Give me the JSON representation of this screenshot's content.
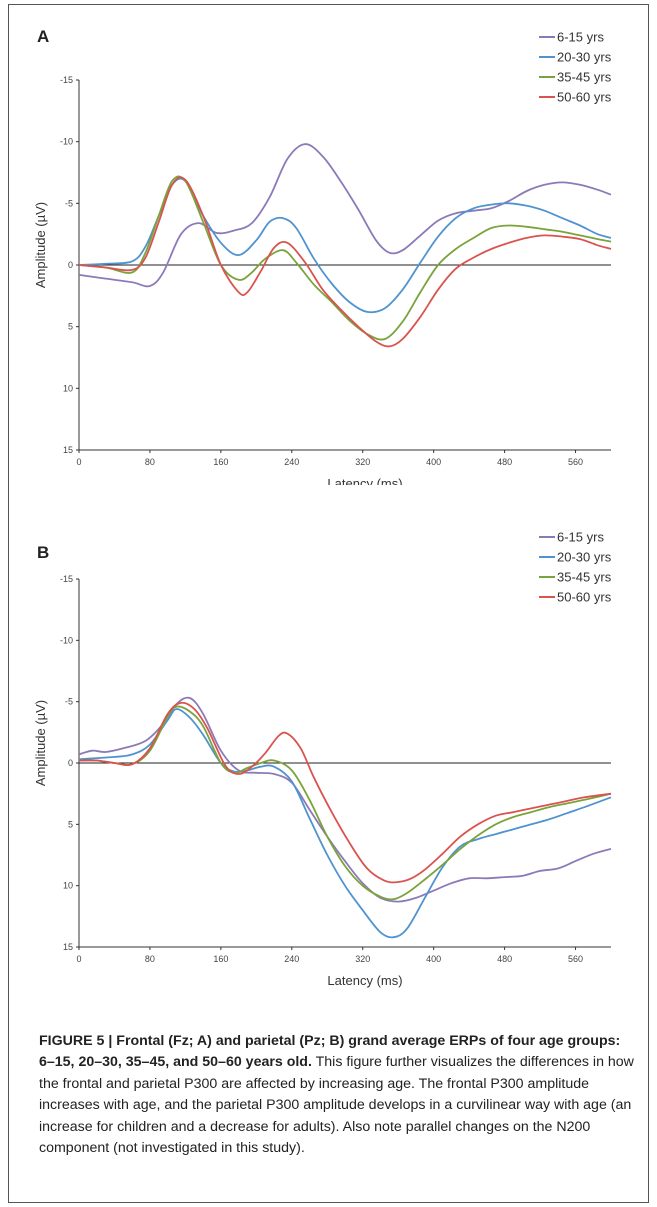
{
  "chart_data": [
    {
      "panel": "A",
      "type": "line",
      "xlabel": "Latency (ms)",
      "ylabel": "Amplitude (µV)",
      "xlim": [
        0,
        600
      ],
      "ylim": [
        -15,
        15
      ],
      "y_inverted": true,
      "xticks": [
        0,
        80,
        160,
        240,
        320,
        400,
        480,
        560
      ],
      "yticks": [
        -15,
        -10,
        -5,
        0,
        5,
        10,
        15
      ],
      "ytick_labels": [
        "-15",
        "-10",
        "-5",
        "0",
        "5",
        "10",
        "15"
      ],
      "grid": false,
      "legend_position": "top-right",
      "series": [
        {
          "name": "6-15 yrs",
          "color": "#8c7ab8",
          "x": [
            0,
            30,
            60,
            80,
            95,
            115,
            135,
            155,
            175,
            195,
            215,
            235,
            255,
            275,
            295,
            315,
            335,
            350,
            365,
            385,
            405,
            425,
            445,
            465,
            485,
            505,
            525,
            545,
            565,
            585,
            600
          ],
          "y": [
            0.8,
            1.1,
            1.4,
            1.7,
            0.6,
            -2.5,
            -3.4,
            -2.6,
            -2.8,
            -3.4,
            -5.5,
            -8.6,
            -9.8,
            -8.8,
            -6.8,
            -4.5,
            -2.0,
            -1.0,
            -1.2,
            -2.4,
            -3.6,
            -4.2,
            -4.4,
            -4.6,
            -5.2,
            -6.0,
            -6.5,
            -6.7,
            -6.5,
            -6.1,
            -5.7
          ]
        },
        {
          "name": "20-30 yrs",
          "color": "#4f93cf",
          "x": [
            0,
            30,
            60,
            75,
            90,
            105,
            120,
            140,
            160,
            180,
            200,
            215,
            230,
            245,
            265,
            285,
            305,
            325,
            345,
            365,
            385,
            405,
            425,
            445,
            465,
            485,
            505,
            525,
            545,
            565,
            585,
            600
          ],
          "y": [
            0.0,
            -0.1,
            -0.3,
            -1.5,
            -4.0,
            -6.5,
            -6.8,
            -4.0,
            -1.8,
            -0.8,
            -2.0,
            -3.5,
            -3.8,
            -3.0,
            -0.5,
            1.5,
            3.0,
            3.8,
            3.5,
            2.0,
            -0.2,
            -2.3,
            -3.8,
            -4.6,
            -4.9,
            -5.0,
            -4.8,
            -4.4,
            -3.8,
            -3.2,
            -2.5,
            -2.2
          ]
        },
        {
          "name": "35-45 yrs",
          "color": "#7aa33b",
          "x": [
            0,
            30,
            60,
            75,
            90,
            105,
            120,
            140,
            160,
            180,
            195,
            210,
            230,
            245,
            265,
            285,
            305,
            325,
            345,
            365,
            385,
            405,
            425,
            445,
            465,
            485,
            505,
            525,
            545,
            565,
            585,
            600
          ],
          "y": [
            0.0,
            0.2,
            0.6,
            -1.0,
            -4.0,
            -6.8,
            -6.8,
            -3.5,
            0.0,
            1.2,
            0.6,
            -0.5,
            -1.2,
            -0.2,
            1.6,
            3.0,
            4.5,
            5.6,
            6.0,
            4.6,
            2.2,
            0.0,
            -1.3,
            -2.2,
            -3.0,
            -3.2,
            -3.1,
            -2.9,
            -2.7,
            -2.4,
            -2.1,
            -1.9
          ]
        },
        {
          "name": "50-60 yrs",
          "color": "#d9534f",
          "x": [
            0,
            30,
            60,
            75,
            90,
            105,
            120,
            140,
            160,
            180,
            190,
            205,
            220,
            235,
            255,
            275,
            295,
            315,
            335,
            350,
            365,
            385,
            405,
            425,
            445,
            465,
            485,
            505,
            525,
            545,
            565,
            585,
            600
          ],
          "y": [
            0.0,
            0.2,
            0.4,
            -0.6,
            -3.5,
            -6.5,
            -6.9,
            -4.0,
            0.0,
            2.2,
            2.2,
            0.5,
            -1.4,
            -1.8,
            -0.2,
            2.0,
            3.6,
            5.0,
            6.2,
            6.6,
            6.0,
            4.2,
            2.0,
            0.3,
            -0.6,
            -1.3,
            -1.8,
            -2.2,
            -2.4,
            -2.3,
            -2.1,
            -1.6,
            -1.3
          ]
        }
      ]
    },
    {
      "panel": "B",
      "type": "line",
      "xlabel": "Latency (ms)",
      "ylabel": "Amplitude (µV)",
      "xlim": [
        0,
        600
      ],
      "ylim": [
        -15,
        15
      ],
      "y_inverted": true,
      "xticks": [
        0,
        80,
        160,
        240,
        320,
        400,
        480,
        560
      ],
      "yticks": [
        -15,
        -10,
        -5,
        0,
        5,
        10,
        15
      ],
      "ytick_labels": [
        "-15",
        "-10",
        "-5",
        "0",
        "5",
        "10",
        "15"
      ],
      "grid": false,
      "legend_position": "top-right",
      "series": [
        {
          "name": "6-15 yrs",
          "color": "#8c7ab8",
          "x": [
            0,
            15,
            30,
            50,
            75,
            95,
            110,
            125,
            140,
            160,
            180,
            200,
            220,
            240,
            260,
            280,
            300,
            320,
            340,
            360,
            380,
            400,
            420,
            440,
            460,
            480,
            500,
            520,
            540,
            560,
            580,
            600
          ],
          "y": [
            -0.7,
            -1.0,
            -0.9,
            -1.2,
            -1.8,
            -3.2,
            -4.8,
            -5.3,
            -4.0,
            -1.0,
            0.6,
            0.8,
            0.9,
            1.6,
            3.8,
            6.0,
            8.0,
            9.8,
            11.0,
            11.3,
            11.0,
            10.4,
            9.8,
            9.4,
            9.4,
            9.3,
            9.2,
            8.8,
            8.6,
            8.0,
            7.4,
            7.0
          ]
        },
        {
          "name": "20-30 yrs",
          "color": "#4f93cf",
          "x": [
            0,
            20,
            40,
            60,
            80,
            100,
            110,
            125,
            140,
            160,
            175,
            190,
            205,
            220,
            240,
            260,
            280,
            300,
            320,
            340,
            355,
            370,
            390,
            410,
            430,
            450,
            470,
            490,
            510,
            530,
            550,
            570,
            600
          ],
          "y": [
            -0.3,
            -0.4,
            -0.5,
            -0.7,
            -1.5,
            -3.5,
            -4.4,
            -3.7,
            -2.3,
            0.0,
            0.7,
            0.6,
            0.3,
            0.3,
            1.5,
            4.5,
            7.5,
            10.0,
            12.0,
            13.8,
            14.2,
            13.5,
            11.0,
            8.5,
            6.8,
            6.2,
            5.8,
            5.4,
            5.0,
            4.6,
            4.1,
            3.6,
            2.8
          ]
        },
        {
          "name": "35-45 yrs",
          "color": "#7aa33b",
          "x": [
            0,
            20,
            40,
            60,
            80,
            100,
            110,
            125,
            140,
            160,
            175,
            190,
            205,
            220,
            240,
            260,
            280,
            300,
            320,
            340,
            355,
            370,
            390,
            410,
            430,
            450,
            470,
            490,
            510,
            530,
            550,
            570,
            600
          ],
          "y": [
            -0.2,
            -0.2,
            0.0,
            0.1,
            -1.0,
            -3.8,
            -4.6,
            -4.2,
            -3.0,
            0.0,
            0.8,
            0.4,
            0.0,
            -0.2,
            0.6,
            3.0,
            6.0,
            8.4,
            10.0,
            10.9,
            11.1,
            10.6,
            9.5,
            8.3,
            7.0,
            5.9,
            5.0,
            4.4,
            4.0,
            3.6,
            3.3,
            3.0,
            2.5
          ]
        },
        {
          "name": "50-60 yrs",
          "color": "#d9534f",
          "x": [
            0,
            20,
            40,
            60,
            80,
            100,
            115,
            130,
            145,
            165,
            180,
            195,
            210,
            225,
            235,
            250,
            265,
            285,
            305,
            325,
            345,
            360,
            375,
            390,
            410,
            430,
            450,
            470,
            490,
            510,
            530,
            550,
            570,
            600
          ],
          "y": [
            -0.2,
            -0.2,
            0.0,
            0.1,
            -1.2,
            -4.0,
            -4.9,
            -4.4,
            -2.8,
            0.2,
            0.9,
            0.3,
            -0.8,
            -2.2,
            -2.4,
            -1.2,
            1.2,
            4.0,
            6.5,
            8.6,
            9.6,
            9.7,
            9.4,
            8.7,
            7.4,
            6.0,
            5.0,
            4.3,
            4.0,
            3.7,
            3.4,
            3.1,
            2.8,
            2.5
          ]
        }
      ]
    }
  ],
  "caption": {
    "bold": "FIGURE 5 | Frontal (Fz; A) and parietal (Pz; B) grand average ERPs of four age groups: 6–15, 20–30, 35–45, and 50–60 years old.",
    "text": " This figure further visualizes the differences in how the frontal and parietal P300 are affected by increasing age. The frontal P300 amplitude increases with age, and the parietal P300 amplitude develops in a curvilinear way with age (an increase for children and a decrease for adults). Also note parallel changes on the N200 component (not investigated in this study)."
  }
}
